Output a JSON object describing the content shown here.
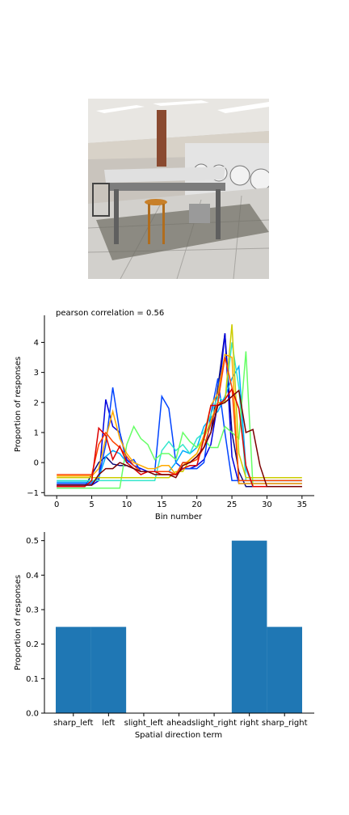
{
  "photo": {
    "description_icon": "laundromat-photo"
  },
  "chart_data": [
    {
      "type": "line",
      "title": "pearson correlation = 0.56",
      "xlabel": "Bin number",
      "ylabel": "Proportion of responses",
      "xlim": [
        -1.75,
        36.75
      ],
      "ylim": [
        -1.1,
        4.9
      ],
      "xticks": [
        0,
        5,
        10,
        15,
        20,
        25,
        30,
        35
      ],
      "yticks": [
        -1,
        0,
        1,
        2,
        3,
        4
      ],
      "grid": false,
      "series": [
        {
          "color": "#0a0a7a",
          "values": [
            -0.8,
            -0.8,
            -0.8,
            -0.8,
            -0.8,
            -0.4,
            0.0,
            0.2,
            -0.05,
            -0.1,
            -0.1,
            -0.2,
            -0.3,
            -0.3,
            -0.3,
            -0.3,
            -0.3,
            -0.4,
            0.0,
            0.0,
            0.2,
            0.5,
            1.0,
            2.5,
            4.3,
            1.0,
            -0.3,
            -0.8,
            -0.8,
            -0.8,
            -0.8,
            -0.8,
            -0.8,
            -0.8,
            -0.8,
            -0.8
          ]
        },
        {
          "color": "#0000dd",
          "values": [
            -0.75,
            -0.75,
            -0.75,
            -0.75,
            -0.75,
            -0.75,
            -0.6,
            2.1,
            1.2,
            1.0,
            0.1,
            -0.1,
            -0.2,
            -0.3,
            -0.3,
            -0.3,
            -0.3,
            -0.4,
            -0.2,
            -0.2,
            -0.1,
            0.1,
            0.6,
            2.0,
            4.3,
            0.2,
            -0.7,
            -0.7,
            -0.7,
            -0.7,
            -0.7,
            -0.7,
            -0.7,
            -0.7,
            -0.7,
            -0.7
          ]
        },
        {
          "color": "#0044ff",
          "values": [
            -0.7,
            -0.7,
            -0.7,
            -0.7,
            -0.7,
            -0.7,
            -0.5,
            0.6,
            2.5,
            1.0,
            0.0,
            0.1,
            -0.3,
            -0.3,
            -0.3,
            2.2,
            1.8,
            0.0,
            -0.2,
            -0.2,
            -0.2,
            0.0,
            1.6,
            2.8,
            1.0,
            -0.6,
            -0.6,
            -0.6,
            -0.6,
            -0.6,
            -0.6,
            -0.6,
            -0.6,
            -0.6,
            -0.6,
            -0.6
          ]
        },
        {
          "color": "#00aaff",
          "values": [
            -0.65,
            -0.65,
            -0.65,
            -0.65,
            -0.65,
            -0.65,
            -0.5,
            0.2,
            0.4,
            0.3,
            0.0,
            -0.2,
            -0.3,
            -0.3,
            -0.3,
            -0.3,
            -0.3,
            0.0,
            0.4,
            0.3,
            0.5,
            1.2,
            1.5,
            1.7,
            2.2,
            2.8,
            3.2,
            -0.2,
            -0.8,
            -0.8,
            -0.8,
            -0.8,
            -0.8,
            -0.8,
            -0.8,
            -0.8
          ]
        },
        {
          "color": "#33e6cc",
          "values": [
            -0.6,
            -0.6,
            -0.6,
            -0.6,
            -0.6,
            -0.6,
            -0.6,
            -0.6,
            -0.6,
            -0.6,
            -0.6,
            -0.6,
            -0.6,
            -0.6,
            -0.6,
            0.4,
            0.7,
            0.4,
            0.6,
            0.3,
            0.8,
            1.0,
            1.6,
            2.2,
            2.0,
            4.0,
            2.5,
            -0.6,
            -0.6,
            -0.6,
            -0.6,
            -0.6,
            -0.6,
            -0.6,
            -0.6,
            -0.6
          ]
        },
        {
          "color": "#66ff66",
          "values": [
            -0.85,
            -0.85,
            -0.85,
            -0.85,
            -0.85,
            -0.85,
            -0.85,
            -0.85,
            -0.85,
            -0.85,
            0.6,
            1.2,
            0.8,
            0.6,
            0.1,
            0.3,
            0.3,
            0.1,
            1.0,
            0.7,
            0.5,
            0.8,
            0.5,
            0.5,
            1.2,
            1.0,
            0.8,
            3.7,
            -0.8,
            -0.8,
            -0.8,
            -0.8,
            -0.8,
            -0.8,
            -0.8,
            -0.8
          ]
        },
        {
          "color": "#cccc00",
          "values": [
            -0.5,
            -0.5,
            -0.5,
            -0.5,
            -0.5,
            -0.5,
            -0.5,
            -0.5,
            -0.5,
            -0.5,
            -0.5,
            -0.5,
            -0.5,
            -0.5,
            -0.5,
            -0.5,
            -0.5,
            -0.3,
            -0.3,
            0.1,
            0.3,
            0.8,
            1.4,
            2.0,
            2.0,
            4.6,
            0.3,
            -0.5,
            -0.5,
            -0.5,
            -0.5,
            -0.5,
            -0.5,
            -0.5,
            -0.5,
            -0.5
          ]
        },
        {
          "color": "#ffaa00",
          "values": [
            -0.45,
            -0.45,
            -0.45,
            -0.45,
            -0.45,
            -0.45,
            -0.2,
            0.8,
            1.7,
            0.8,
            0.3,
            0.0,
            -0.1,
            -0.2,
            -0.2,
            -0.1,
            -0.1,
            -0.4,
            -0.1,
            0.1,
            0.3,
            0.9,
            1.9,
            2.3,
            3.6,
            3.5,
            -0.7,
            -0.7,
            -0.7,
            -0.7,
            -0.7,
            -0.7,
            -0.7,
            -0.7,
            -0.7,
            -0.7
          ]
        },
        {
          "color": "#ff4400",
          "values": [
            -0.4,
            -0.4,
            -0.4,
            -0.4,
            -0.4,
            -0.4,
            0.6,
            1.0,
            0.7,
            0.5,
            0.2,
            -0.1,
            -0.3,
            -0.3,
            -0.3,
            -0.3,
            -0.3,
            -0.4,
            0.0,
            0.0,
            0.1,
            0.5,
            1.3,
            2.0,
            3.5,
            2.5,
            -0.6,
            -0.6,
            -0.6,
            -0.6,
            -0.6,
            -0.6,
            -0.6,
            -0.6,
            -0.6,
            -0.6
          ]
        },
        {
          "color": "#dd0000",
          "values": [
            -0.8,
            -0.8,
            -0.8,
            -0.8,
            -0.8,
            -0.6,
            1.15,
            0.9,
            0.1,
            0.55,
            0.0,
            -0.2,
            -0.4,
            -0.3,
            -0.3,
            -0.4,
            -0.4,
            -0.4,
            -0.2,
            -0.1,
            -0.1,
            0.8,
            1.9,
            1.9,
            2.1,
            2.45,
            1.8,
            -0.1,
            -0.8,
            -0.8,
            -0.8,
            -0.8,
            -0.8,
            -0.8,
            -0.8,
            -0.8
          ]
        },
        {
          "color": "#7a0000",
          "values": [
            -0.75,
            -0.75,
            -0.75,
            -0.75,
            -0.75,
            -0.75,
            -0.4,
            -0.2,
            -0.2,
            0.0,
            -0.1,
            -0.2,
            -0.3,
            -0.3,
            -0.4,
            -0.4,
            -0.4,
            -0.5,
            -0.1,
            0.0,
            0.2,
            0.5,
            1.0,
            1.9,
            2.0,
            2.2,
            2.4,
            1.0,
            1.1,
            -0.1,
            -0.8,
            -0.8,
            -0.8,
            -0.8,
            -0.8,
            -0.8
          ]
        }
      ]
    },
    {
      "type": "bar",
      "title": "",
      "xlabel": "Spatial direction term",
      "ylabel": "Proportion of responses",
      "categories": [
        "sharp_left",
        "left",
        "slight_left",
        "ahead",
        "slight_right",
        "right",
        "sharp_right"
      ],
      "values": [
        0.25,
        0.25,
        0.0,
        0.0,
        0.0,
        0.5,
        0.25
      ],
      "ylim": [
        0,
        0.525
      ],
      "yticks": [
        0.0,
        0.1,
        0.2,
        0.3,
        0.4,
        0.5
      ],
      "bar_color": "#1f77b4",
      "grid": false
    }
  ]
}
